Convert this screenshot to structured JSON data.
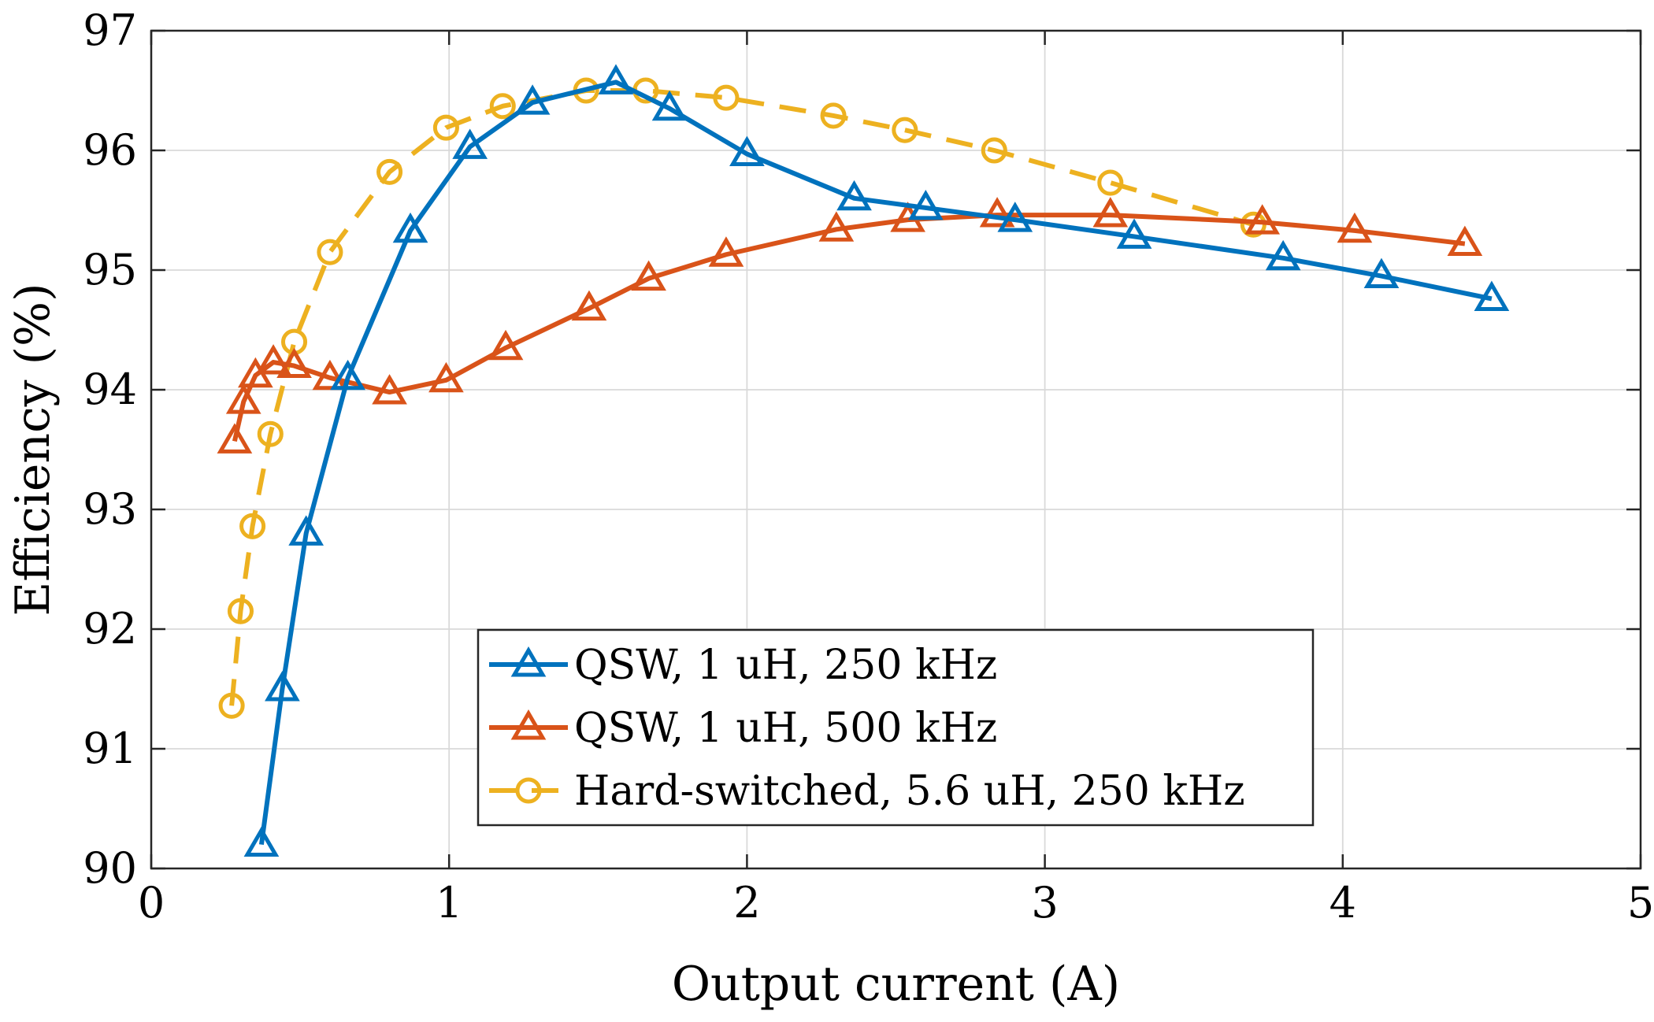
{
  "chart_data": {
    "type": "line",
    "title": "",
    "xlabel": "Output current (A)",
    "ylabel": "Efficiency (%)",
    "xlim": [
      0,
      5
    ],
    "ylim": [
      90,
      97
    ],
    "xticks": [
      0,
      1,
      2,
      3,
      4,
      5
    ],
    "yticks": [
      90,
      91,
      92,
      93,
      94,
      95,
      96,
      97
    ],
    "xtick_labels": [
      "0",
      "1",
      "2",
      "3",
      "4",
      "5"
    ],
    "ytick_labels": [
      "90",
      "91",
      "92",
      "93",
      "94",
      "95",
      "96",
      "97"
    ],
    "grid": true,
    "legend_position": "bottom-center",
    "series": [
      {
        "name": "QSW, 1 uH, 250 kHz",
        "color": "#0072BD",
        "marker": "triangle",
        "line_style": "solid",
        "x": [
          0.37,
          0.44,
          0.52,
          0.66,
          0.87,
          1.07,
          1.28,
          1.56,
          1.74,
          2.0,
          2.36,
          2.6,
          2.9,
          3.3,
          3.8,
          4.13,
          4.5
        ],
        "y": [
          90.2,
          91.5,
          92.8,
          94.1,
          95.33,
          96.03,
          96.4,
          96.57,
          96.35,
          95.97,
          95.6,
          95.52,
          95.42,
          95.28,
          95.1,
          94.95,
          94.76
        ]
      },
      {
        "name": "QSW, 1 uH, 500 kHz",
        "color": "#D95319",
        "marker": "triangle",
        "line_style": "solid",
        "x": [
          0.28,
          0.31,
          0.35,
          0.41,
          0.48,
          0.6,
          0.8,
          0.99,
          1.19,
          1.47,
          1.67,
          1.93,
          2.3,
          2.54,
          2.84,
          3.22,
          3.73,
          4.04,
          4.41
        ],
        "y": [
          93.57,
          93.9,
          94.12,
          94.23,
          94.2,
          94.1,
          93.98,
          94.08,
          94.35,
          94.68,
          94.93,
          95.13,
          95.34,
          95.42,
          95.46,
          95.46,
          95.4,
          95.33,
          95.22
        ]
      },
      {
        "name": "Hard-switched, 5.6 uH, 250 kHz",
        "color": "#EDB120",
        "marker": "circle",
        "line_style": "dashed",
        "x": [
          0.27,
          0.3,
          0.34,
          0.4,
          0.48,
          0.6,
          0.8,
          0.99,
          1.18,
          1.46,
          1.66,
          1.93,
          2.29,
          2.53,
          2.83,
          3.22,
          3.7
        ],
        "y": [
          91.36,
          92.15,
          92.86,
          93.63,
          94.4,
          95.15,
          95.82,
          96.19,
          96.37,
          96.5,
          96.5,
          96.44,
          96.29,
          96.17,
          96.0,
          95.73,
          95.38
        ]
      }
    ]
  }
}
